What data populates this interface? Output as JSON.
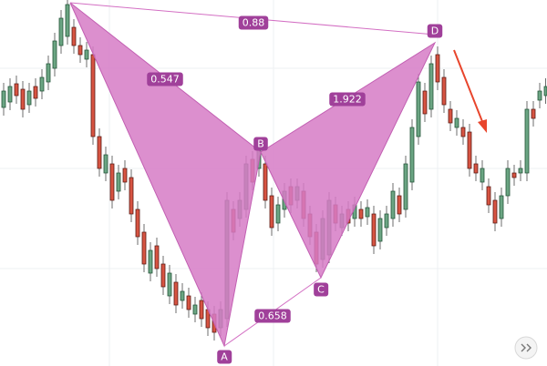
{
  "points": [
    "A",
    "B",
    "C",
    "D"
  ],
  "ratios": [
    0.88,
    0.547,
    1.922,
    0.658
  ]
}
